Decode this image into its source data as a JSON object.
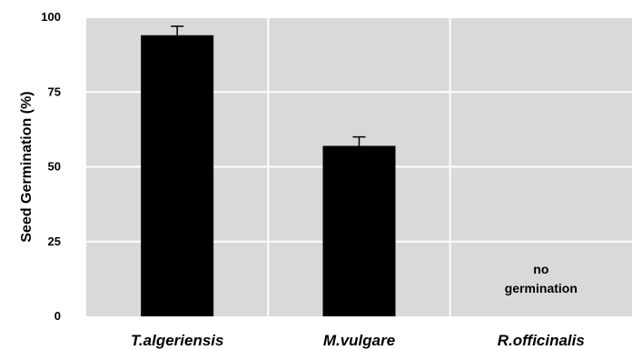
{
  "chart_data": {
    "type": "bar",
    "title": "",
    "xlabel": "",
    "ylabel": "Seed Germination (%)",
    "ylim": [
      0,
      100
    ],
    "yticks": [
      0,
      25,
      50,
      75,
      100
    ],
    "grid": true,
    "colors": {
      "plot_background": "#d9d9d9",
      "bar": "#000000",
      "grid": "#ffffff"
    },
    "categories": [
      "T.algeriensis",
      "M.vulgare",
      "R.officinalis"
    ],
    "values": [
      94,
      57,
      0
    ],
    "error_bars": [
      3,
      3,
      0
    ],
    "annotations": [
      {
        "category": "R.officinalis",
        "lines": [
          "no",
          "germination"
        ]
      }
    ]
  }
}
